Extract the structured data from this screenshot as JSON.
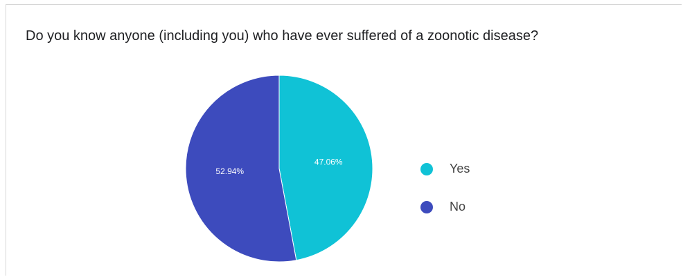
{
  "chart_data": {
    "type": "pie",
    "title": "Do you know anyone (including you) who have ever suffered of a zoonotic disease?",
    "categories": [
      "Yes",
      "No"
    ],
    "values": [
      47.06,
      52.94
    ],
    "labels": [
      "47.06%",
      "52.94%"
    ],
    "colors": [
      "#10c2d6",
      "#3d4bbd"
    ],
    "start_angle_deg": 0,
    "direction": "clockwise",
    "legend_position": "right"
  }
}
